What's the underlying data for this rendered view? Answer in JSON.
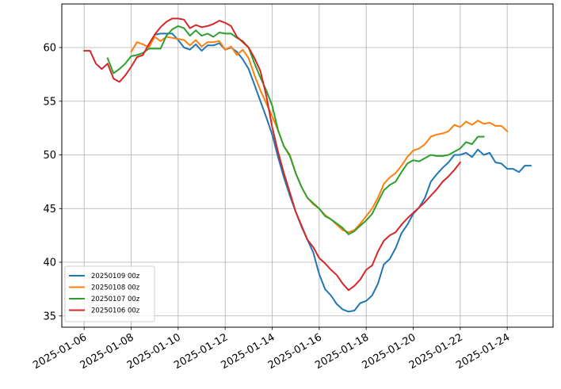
{
  "chart_data": {
    "type": "line",
    "title": "",
    "xlabel": "",
    "ylabel": "",
    "xlim": [
      "2025-01-05 01:12",
      "2025-01-25 22:48"
    ],
    "ylim": [
      33.95,
      64.06
    ],
    "grid": true,
    "legend_placement": "lower-left",
    "x_ticks": [
      "2025-01-06",
      "2025-01-08",
      "2025-01-10",
      "2025-01-12",
      "2025-01-14",
      "2025-01-16",
      "2025-01-18",
      "2025-01-20",
      "2025-01-22",
      "2025-01-24"
    ],
    "y_ticks": [
      "35",
      "40",
      "45",
      "50",
      "55",
      "60"
    ],
    "series": [
      {
        "name": "20250109 00z",
        "color": "#1f77b4",
        "x": [
          "2025-01-09 00:00",
          "2025-01-09 06:00",
          "2025-01-09 12:00",
          "2025-01-09 18:00",
          "2025-01-10 00:00",
          "2025-01-10 06:00",
          "2025-01-10 12:00",
          "2025-01-10 18:00",
          "2025-01-11 00:00",
          "2025-01-11 06:00",
          "2025-01-11 12:00",
          "2025-01-11 18:00",
          "2025-01-12 00:00",
          "2025-01-12 06:00",
          "2025-01-12 12:00",
          "2025-01-12 18:00",
          "2025-01-13 00:00",
          "2025-01-13 06:00",
          "2025-01-13 12:00",
          "2025-01-13 18:00",
          "2025-01-14 00:00",
          "2025-01-14 06:00",
          "2025-01-14 12:00",
          "2025-01-14 18:00",
          "2025-01-15 00:00",
          "2025-01-15 06:00",
          "2025-01-15 12:00",
          "2025-01-15 18:00",
          "2025-01-16 00:00",
          "2025-01-16 06:00",
          "2025-01-16 12:00",
          "2025-01-16 18:00",
          "2025-01-17 00:00",
          "2025-01-17 06:00",
          "2025-01-17 12:00",
          "2025-01-17 18:00",
          "2025-01-18 00:00",
          "2025-01-18 06:00",
          "2025-01-18 12:00",
          "2025-01-18 18:00",
          "2025-01-19 00:00",
          "2025-01-19 06:00",
          "2025-01-19 12:00",
          "2025-01-19 18:00",
          "2025-01-20 00:00",
          "2025-01-20 06:00",
          "2025-01-20 12:00",
          "2025-01-20 18:00",
          "2025-01-21 00:00",
          "2025-01-21 06:00",
          "2025-01-21 12:00",
          "2025-01-21 18:00",
          "2025-01-22 00:00",
          "2025-01-22 06:00",
          "2025-01-22 12:00",
          "2025-01-22 18:00",
          "2025-01-23 00:00",
          "2025-01-23 06:00",
          "2025-01-23 12:00",
          "2025-01-23 18:00",
          "2025-01-24 00:00",
          "2025-01-24 06:00",
          "2025-01-24 12:00",
          "2025-01-24 18:00",
          "2025-01-25 00:00"
        ],
        "values": [
          61.2,
          61.3,
          61.3,
          61.3,
          60.7,
          60.0,
          59.8,
          60.3,
          59.7,
          60.2,
          60.2,
          60.4,
          59.8,
          60.0,
          59.6,
          58.9,
          58.0,
          56.5,
          55.0,
          53.5,
          51.9,
          49.8,
          47.9,
          46.2,
          44.7,
          43.3,
          42.1,
          40.9,
          38.9,
          37.5,
          36.9,
          36.1,
          35.6,
          35.4,
          35.5,
          36.2,
          36.4,
          36.9,
          38.0,
          39.8,
          40.3,
          41.3,
          42.7,
          43.5,
          44.5,
          45.1,
          46.0,
          47.5,
          48.2,
          48.8,
          49.3,
          50.0,
          50.0,
          50.2,
          49.8,
          50.5,
          50.0,
          50.2,
          49.3,
          49.2,
          48.7,
          48.7,
          48.4,
          49.0,
          49.0
        ]
      },
      {
        "name": "20250108 00z",
        "color": "#ff7f0e",
        "x": [
          "2025-01-08 00:00",
          "2025-01-08 06:00",
          "2025-01-08 12:00",
          "2025-01-08 18:00",
          "2025-01-09 00:00",
          "2025-01-09 06:00",
          "2025-01-09 12:00",
          "2025-01-09 18:00",
          "2025-01-10 00:00",
          "2025-01-10 06:00",
          "2025-01-10 12:00",
          "2025-01-10 18:00",
          "2025-01-11 00:00",
          "2025-01-11 06:00",
          "2025-01-11 12:00",
          "2025-01-11 18:00",
          "2025-01-12 00:00",
          "2025-01-12 06:00",
          "2025-01-12 12:00",
          "2025-01-12 18:00",
          "2025-01-13 00:00",
          "2025-01-13 06:00",
          "2025-01-13 12:00",
          "2025-01-13 18:00",
          "2025-01-14 00:00",
          "2025-01-14 06:00",
          "2025-01-14 12:00",
          "2025-01-14 18:00",
          "2025-01-15 00:00",
          "2025-01-15 06:00",
          "2025-01-15 12:00",
          "2025-01-15 18:00",
          "2025-01-16 00:00",
          "2025-01-16 06:00",
          "2025-01-16 12:00",
          "2025-01-16 18:00",
          "2025-01-17 00:00",
          "2025-01-17 06:00",
          "2025-01-17 12:00",
          "2025-01-17 18:00",
          "2025-01-18 00:00",
          "2025-01-18 06:00",
          "2025-01-18 12:00",
          "2025-01-18 18:00",
          "2025-01-19 00:00",
          "2025-01-19 06:00",
          "2025-01-19 12:00",
          "2025-01-19 18:00",
          "2025-01-20 00:00",
          "2025-01-20 06:00",
          "2025-01-20 12:00",
          "2025-01-20 18:00",
          "2025-01-21 00:00",
          "2025-01-21 06:00",
          "2025-01-21 12:00",
          "2025-01-21 18:00",
          "2025-01-22 00:00",
          "2025-01-22 06:00",
          "2025-01-22 12:00",
          "2025-01-22 18:00",
          "2025-01-23 00:00",
          "2025-01-23 06:00",
          "2025-01-23 12:00",
          "2025-01-23 18:00",
          "2025-01-24 00:00"
        ],
        "values": [
          59.6,
          60.5,
          60.3,
          60.0,
          61.0,
          60.6,
          61.0,
          60.9,
          60.8,
          60.7,
          60.2,
          60.7,
          60.1,
          60.5,
          60.5,
          60.6,
          59.8,
          60.1,
          59.3,
          59.8,
          59.0,
          57.4,
          56.0,
          54.8,
          53.6,
          52.3,
          50.8,
          50.0,
          48.3,
          47.0,
          46.0,
          45.4,
          45.0,
          44.4,
          44.0,
          43.5,
          43.0,
          42.8,
          43.0,
          43.6,
          44.3,
          45.0,
          46.0,
          47.3,
          47.9,
          48.3,
          49.0,
          49.8,
          50.4,
          50.6,
          51.0,
          51.7,
          51.9,
          52.0,
          52.2,
          52.8,
          52.6,
          53.1,
          52.8,
          53.2,
          52.9,
          53.0,
          52.7,
          52.7,
          52.2
        ]
      },
      {
        "name": "20250107 00z",
        "color": "#2ca02c",
        "x": [
          "2025-01-07 00:00",
          "2025-01-07 06:00",
          "2025-01-07 12:00",
          "2025-01-07 18:00",
          "2025-01-08 00:00",
          "2025-01-08 06:00",
          "2025-01-08 12:00",
          "2025-01-08 18:00",
          "2025-01-09 00:00",
          "2025-01-09 06:00",
          "2025-01-09 12:00",
          "2025-01-09 18:00",
          "2025-01-10 00:00",
          "2025-01-10 06:00",
          "2025-01-10 12:00",
          "2025-01-10 18:00",
          "2025-01-11 00:00",
          "2025-01-11 06:00",
          "2025-01-11 12:00",
          "2025-01-11 18:00",
          "2025-01-12 00:00",
          "2025-01-12 06:00",
          "2025-01-12 12:00",
          "2025-01-12 18:00",
          "2025-01-13 00:00",
          "2025-01-13 06:00",
          "2025-01-13 12:00",
          "2025-01-13 18:00",
          "2025-01-14 00:00",
          "2025-01-14 06:00",
          "2025-01-14 12:00",
          "2025-01-14 18:00",
          "2025-01-15 00:00",
          "2025-01-15 06:00",
          "2025-01-15 12:00",
          "2025-01-15 18:00",
          "2025-01-16 00:00",
          "2025-01-16 06:00",
          "2025-01-16 12:00",
          "2025-01-16 18:00",
          "2025-01-17 00:00",
          "2025-01-17 06:00",
          "2025-01-17 12:00",
          "2025-01-17 18:00",
          "2025-01-18 00:00",
          "2025-01-18 06:00",
          "2025-01-18 12:00",
          "2025-01-18 18:00",
          "2025-01-19 00:00",
          "2025-01-19 06:00",
          "2025-01-19 12:00",
          "2025-01-19 18:00",
          "2025-01-20 00:00",
          "2025-01-20 06:00",
          "2025-01-20 12:00",
          "2025-01-20 18:00",
          "2025-01-21 00:00",
          "2025-01-21 06:00",
          "2025-01-21 12:00",
          "2025-01-21 18:00",
          "2025-01-22 00:00",
          "2025-01-22 06:00",
          "2025-01-22 12:00",
          "2025-01-22 18:00",
          "2025-01-23 00:00"
        ],
        "values": [
          59.0,
          57.6,
          58.0,
          58.5,
          59.2,
          59.3,
          59.5,
          59.9,
          59.9,
          59.9,
          61.1,
          61.7,
          62.0,
          61.8,
          61.1,
          61.6,
          61.1,
          61.3,
          61.0,
          61.4,
          61.3,
          61.3,
          60.9,
          60.6,
          60.0,
          58.5,
          57.2,
          56.0,
          54.6,
          52.3,
          50.8,
          49.9,
          48.3,
          47.0,
          46.0,
          45.5,
          45.0,
          44.3,
          44.0,
          43.6,
          43.2,
          42.6,
          42.9,
          43.4,
          43.9,
          44.5,
          45.6,
          46.7,
          47.2,
          47.5,
          48.4,
          49.2,
          49.5,
          49.4,
          49.7,
          50.0,
          49.9,
          49.9,
          50.0,
          50.3,
          50.6,
          51.2,
          51.0,
          51.7,
          51.7
        ]
      },
      {
        "name": "20250106 00z",
        "color": "#d62728",
        "x": [
          "2025-01-06 00:00",
          "2025-01-06 06:00",
          "2025-01-06 12:00",
          "2025-01-06 18:00",
          "2025-01-07 00:00",
          "2025-01-07 06:00",
          "2025-01-07 12:00",
          "2025-01-07 18:00",
          "2025-01-08 00:00",
          "2025-01-08 06:00",
          "2025-01-08 12:00",
          "2025-01-08 18:00",
          "2025-01-09 00:00",
          "2025-01-09 06:00",
          "2025-01-09 12:00",
          "2025-01-09 18:00",
          "2025-01-10 00:00",
          "2025-01-10 06:00",
          "2025-01-10 12:00",
          "2025-01-10 18:00",
          "2025-01-11 00:00",
          "2025-01-11 06:00",
          "2025-01-11 12:00",
          "2025-01-11 18:00",
          "2025-01-12 00:00",
          "2025-01-12 06:00",
          "2025-01-12 12:00",
          "2025-01-12 18:00",
          "2025-01-13 00:00",
          "2025-01-13 06:00",
          "2025-01-13 12:00",
          "2025-01-13 18:00",
          "2025-01-14 00:00",
          "2025-01-14 06:00",
          "2025-01-14 12:00",
          "2025-01-14 18:00",
          "2025-01-15 00:00",
          "2025-01-15 06:00",
          "2025-01-15 12:00",
          "2025-01-15 18:00",
          "2025-01-16 00:00",
          "2025-01-16 06:00",
          "2025-01-16 12:00",
          "2025-01-16 18:00",
          "2025-01-17 00:00",
          "2025-01-17 06:00",
          "2025-01-17 12:00",
          "2025-01-17 18:00",
          "2025-01-18 00:00",
          "2025-01-18 06:00",
          "2025-01-18 12:00",
          "2025-01-18 18:00",
          "2025-01-19 00:00",
          "2025-01-19 06:00",
          "2025-01-19 12:00",
          "2025-01-19 18:00",
          "2025-01-20 00:00",
          "2025-01-20 06:00",
          "2025-01-20 12:00",
          "2025-01-20 18:00",
          "2025-01-21 00:00",
          "2025-01-21 06:00",
          "2025-01-21 12:00",
          "2025-01-21 18:00",
          "2025-01-22 00:00"
        ],
        "values": [
          59.7,
          59.7,
          58.5,
          58.0,
          58.5,
          57.1,
          56.8,
          57.4,
          58.2,
          59.1,
          59.3,
          60.3,
          61.2,
          61.9,
          62.4,
          62.7,
          62.7,
          62.6,
          61.8,
          62.1,
          61.9,
          62.0,
          62.2,
          62.5,
          62.3,
          62.0,
          61.0,
          60.5,
          60.0,
          59.0,
          57.8,
          55.5,
          52.6,
          50.3,
          48.3,
          46.5,
          44.7,
          43.4,
          42.1,
          41.4,
          40.4,
          39.9,
          39.3,
          38.8,
          38.0,
          37.4,
          37.8,
          38.4,
          39.3,
          39.7,
          41.0,
          42.0,
          42.5,
          42.8,
          43.5,
          44.1,
          44.6,
          45.1,
          45.6,
          46.2,
          46.8,
          47.5,
          48.0,
          48.6,
          49.3
        ]
      }
    ]
  }
}
